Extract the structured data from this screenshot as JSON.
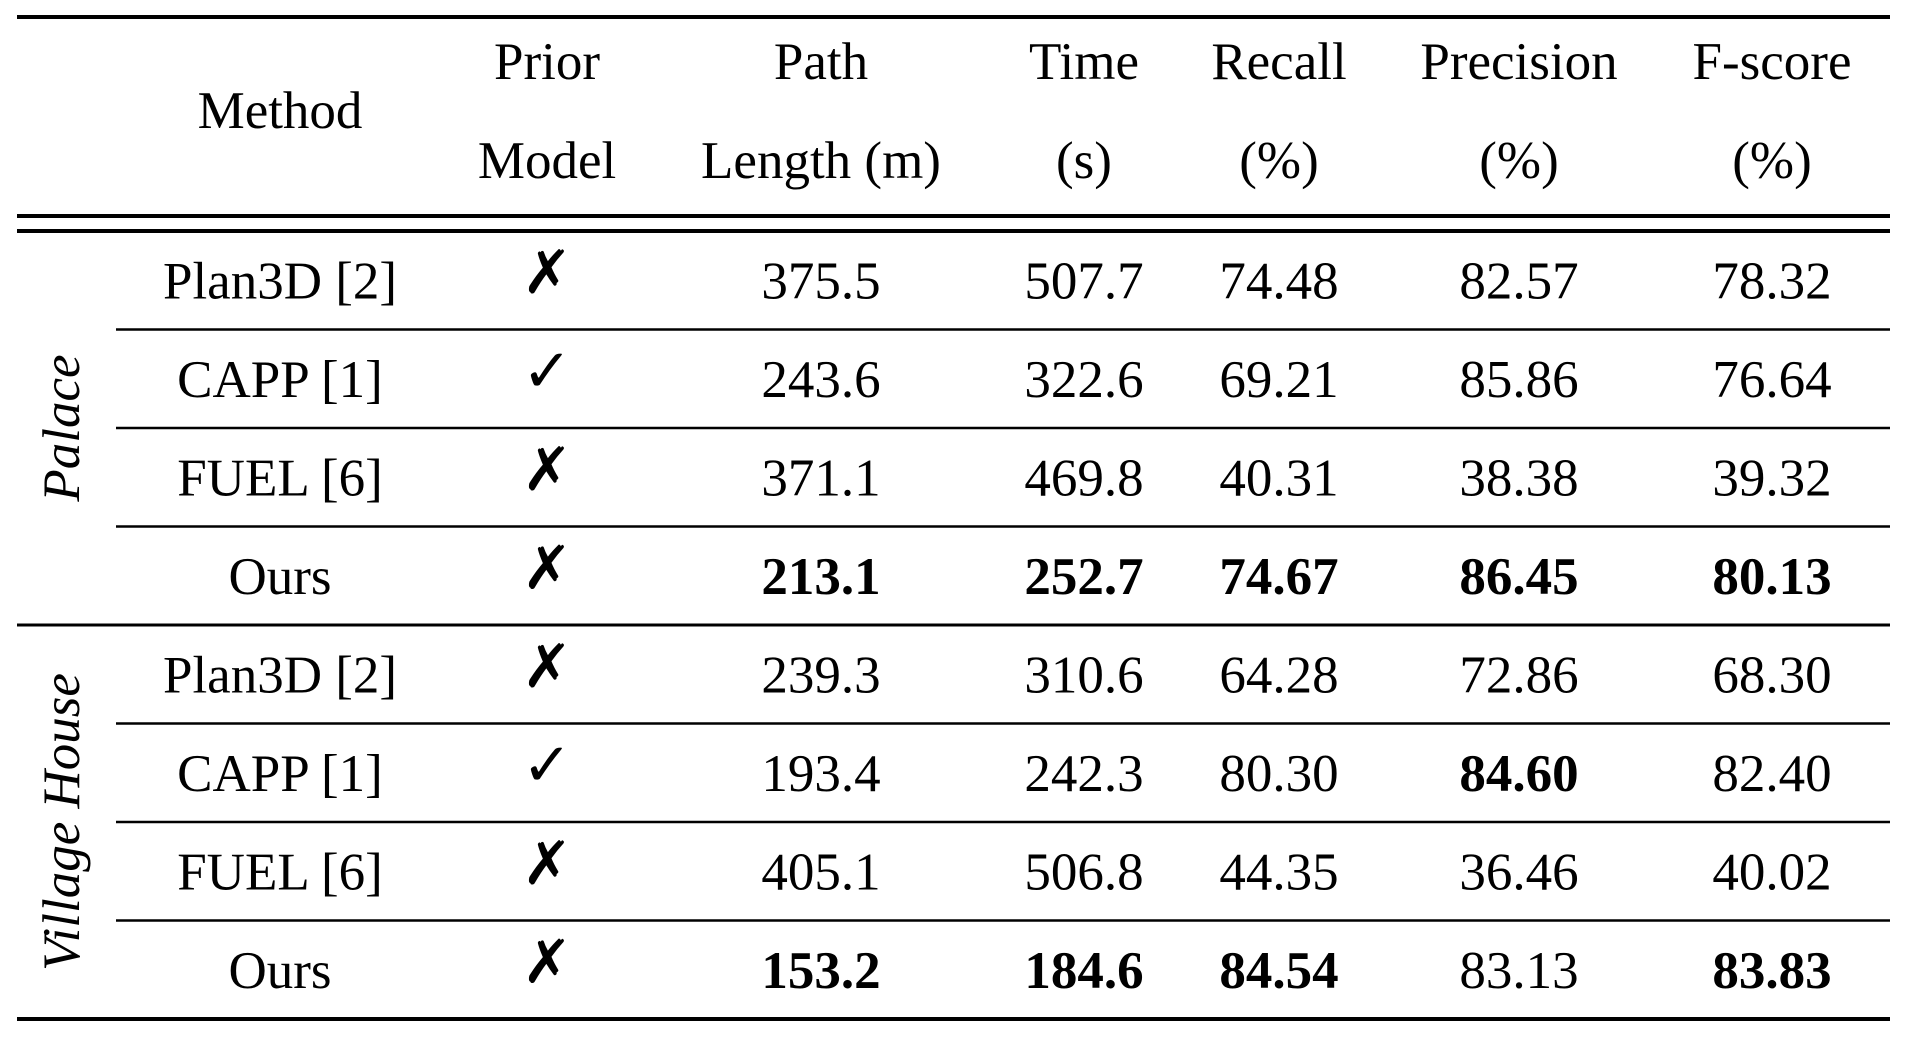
{
  "table": {
    "header": [
      [
        "Method"
      ],
      [
        "Prior",
        "Model"
      ],
      [
        "Path",
        "Length (m)"
      ],
      [
        "Time",
        "(s)"
      ],
      [
        "Recall",
        "(%)"
      ],
      [
        "Precision",
        "(%)"
      ],
      [
        "F-score",
        "(%)"
      ]
    ],
    "groups": [
      {
        "name": "Palace",
        "rows": [
          {
            "method": "Plan3D [2]",
            "prior": {
              "symbol": "✗",
              "color": "#000000"
            },
            "values": [
              "375.5",
              "507.7",
              "74.48",
              "82.57",
              "78.32"
            ],
            "bold": [
              false,
              false,
              false,
              false,
              false
            ]
          },
          {
            "method": "CAPP [1]",
            "prior": {
              "symbol": "✓",
              "color": "#e8141b"
            },
            "values": [
              "243.6",
              "322.6",
              "69.21",
              "85.86",
              "76.64"
            ],
            "bold": [
              false,
              false,
              false,
              false,
              false
            ]
          },
          {
            "method": "FUEL [6]",
            "prior": {
              "symbol": "✗",
              "color": "#000000"
            },
            "values": [
              "371.1",
              "469.8",
              "40.31",
              "38.38",
              "39.32"
            ],
            "bold": [
              false,
              false,
              false,
              false,
              false
            ]
          },
          {
            "method": "Ours",
            "prior": {
              "symbol": "✗",
              "color": "#000000"
            },
            "values": [
              "213.1",
              "252.7",
              "74.67",
              "86.45",
              "80.13"
            ],
            "bold": [
              true,
              true,
              true,
              true,
              true
            ]
          }
        ]
      },
      {
        "name": "Village House",
        "rows": [
          {
            "method": "Plan3D [2]",
            "prior": {
              "symbol": "✗",
              "color": "#000000"
            },
            "values": [
              "239.3",
              "310.6",
              "64.28",
              "72.86",
              "68.30"
            ],
            "bold": [
              false,
              false,
              false,
              false,
              false
            ]
          },
          {
            "method": "CAPP [1]",
            "prior": {
              "symbol": "✓",
              "color": "#e8141b"
            },
            "values": [
              "193.4",
              "242.3",
              "80.30",
              "84.60",
              "82.40"
            ],
            "bold": [
              false,
              false,
              false,
              true,
              false
            ]
          },
          {
            "method": "FUEL [6]",
            "prior": {
              "symbol": "✗",
              "color": "#000000"
            },
            "values": [
              "405.1",
              "506.8",
              "44.35",
              "36.46",
              "40.02"
            ],
            "bold": [
              false,
              false,
              false,
              false,
              false
            ]
          },
          {
            "method": "Ours",
            "prior": {
              "symbol": "✗",
              "color": "#000000"
            },
            "values": [
              "153.2",
              "184.6",
              "84.54",
              "83.13",
              "83.83"
            ],
            "bold": [
              true,
              true,
              true,
              false,
              true
            ]
          }
        ]
      }
    ]
  }
}
